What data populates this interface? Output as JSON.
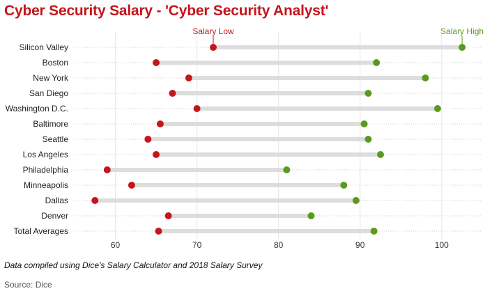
{
  "chart_data": {
    "type": "dumbbell",
    "title": "Cyber Security Salary - 'Cyber Security Analyst'",
    "xlabel": "",
    "ylabel": "",
    "xlim": [
      55,
      103
    ],
    "x_ticks": [
      60,
      70,
      80,
      90,
      100
    ],
    "grid": true,
    "series": [
      {
        "name": "Salary Low",
        "color": "#c4161c"
      },
      {
        "name": "Salary High",
        "color": "#5b9a1e"
      }
    ],
    "categories": [
      "Silicon Valley",
      "Boston",
      "New York",
      "San Diego",
      "Washington D.C.",
      "Baltimore",
      "Seattle",
      "Los Angeles",
      "Philadelphia",
      "Minneapolis",
      "Dallas",
      "Denver",
      "Total Averages"
    ],
    "low": [
      72,
      65,
      69,
      67,
      70,
      65.5,
      64,
      65,
      59,
      62,
      57.5,
      66.5,
      65.3
    ],
    "high": [
      102.5,
      92,
      98,
      91,
      99.5,
      90.5,
      91,
      92.5,
      81,
      88,
      89.5,
      84,
      91.7
    ],
    "annotations": [
      {
        "text": "Salary Low",
        "series": "low",
        "category": "Silicon Valley"
      },
      {
        "text": "Salary High",
        "series": "high",
        "category": "Silicon Valley"
      }
    ]
  },
  "footer": {
    "note": "Data compiled using Dice's Salary Calculator and 2018 Salary Survey",
    "source": "Source: Dice"
  },
  "colors": {
    "title": "#c4161c",
    "low": "#c4161c",
    "high": "#5b9a1e",
    "bar": "#dddddd",
    "grid": "#e6e6e6"
  }
}
